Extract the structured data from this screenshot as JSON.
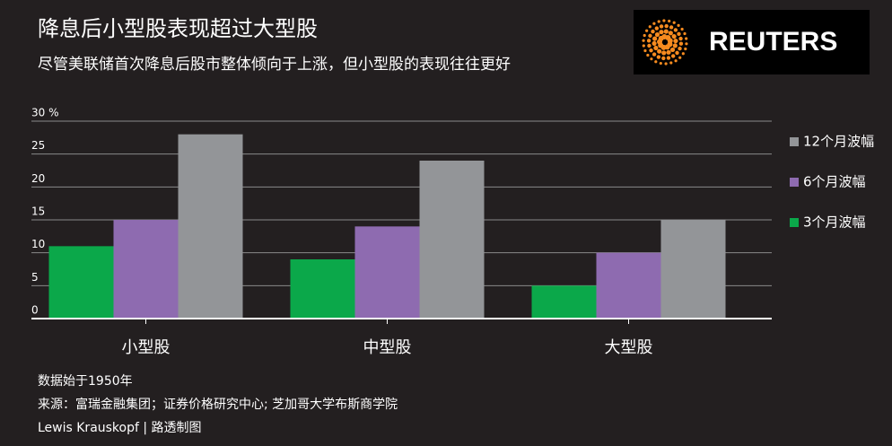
{
  "chart_data": {
    "type": "bar",
    "title": "降息后小型股表现超过大型股",
    "subtitle": "尽管美联储首次降息后股市整体倾向于上涨，但小型股的表现往往更好",
    "logo": "REUTERS",
    "categories": [
      "小型股",
      "中型股",
      "大型股"
    ],
    "series": [
      {
        "name": "3个月波幅",
        "color": "#0ba84a",
        "values": [
          11,
          9,
          5
        ]
      },
      {
        "name": "6个月波幅",
        "color": "#8e6bb0",
        "values": [
          15,
          14,
          10
        ]
      },
      {
        "name": "12个月波幅",
        "color": "#939598",
        "values": [
          28,
          24,
          15
        ]
      }
    ],
    "ylim": [
      0,
      30
    ],
    "yticks": [
      0,
      5,
      10,
      15,
      20,
      25,
      {
        "value": 30,
        "label": "30 %"
      }
    ],
    "grid": true,
    "legend": "right",
    "notes": [
      "数据始于1950年",
      "来源：富瑞金融集团；证券价格研究中心; 芝加哥大学布斯商学院",
      "Lewis Krauskopf | 路透制图"
    ]
  }
}
